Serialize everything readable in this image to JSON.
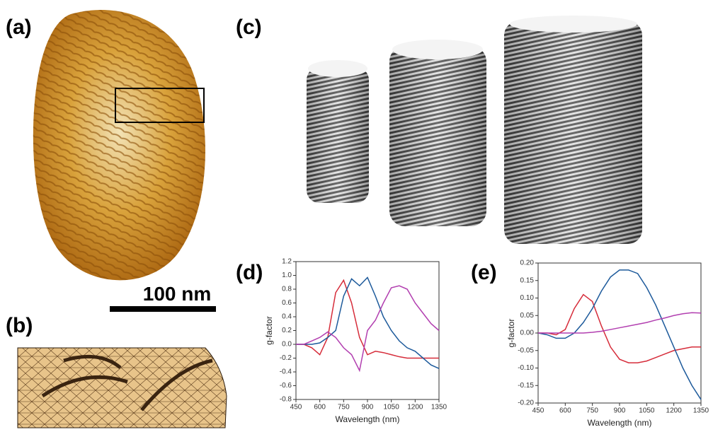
{
  "panels": {
    "a": "(a)",
    "b": "(b)",
    "c": "(c)",
    "d": "(d)",
    "e": "(e)"
  },
  "scale_bar": "100 nm",
  "chart_data": [
    {
      "type": "line",
      "x_label": "Wavelength (nm)",
      "y_label": "g-factor",
      "x": [
        450,
        500,
        550,
        600,
        650,
        700,
        750,
        800,
        850,
        900,
        950,
        1000,
        1050,
        1100,
        1150,
        1200,
        1250,
        1300,
        1350
      ],
      "xlim": [
        450,
        1350
      ],
      "xticks": [
        450,
        600,
        750,
        900,
        1050,
        1200,
        1350
      ],
      "ylim": [
        -0.8,
        1.2
      ],
      "yticks": [
        -0.8,
        -0.6,
        -0.4,
        -0.2,
        {
          "value": 0,
          "label": "0.0"
        },
        0.2,
        0.4,
        0.6,
        0.8,
        {
          "value": 1,
          "label": "1.0"
        },
        1.2
      ],
      "series": [
        {
          "color": "#d62c3a",
          "values": [
            0,
            0,
            -0.05,
            -0.15,
            0.1,
            0.75,
            0.93,
            0.6,
            0.1,
            -0.15,
            -0.1,
            -0.12,
            -0.15,
            -0.18,
            -0.2,
            -0.2,
            -0.2,
            -0.2,
            -0.2
          ]
        },
        {
          "color": "#1d5a9b",
          "values": [
            0,
            0,
            0,
            0.02,
            0.1,
            0.2,
            0.7,
            0.95,
            0.85,
            0.97,
            0.7,
            0.4,
            0.2,
            0.05,
            -0.05,
            -0.1,
            -0.2,
            -0.3,
            -0.35
          ]
        },
        {
          "color": "#b23fb0",
          "values": [
            0,
            0,
            0.05,
            0.1,
            0.18,
            0.1,
            -0.05,
            -0.15,
            -0.38,
            0.2,
            0.35,
            0.6,
            0.82,
            0.85,
            0.8,
            0.6,
            0.45,
            0.3,
            0.2
          ]
        }
      ]
    },
    {
      "type": "line",
      "x_label": "Wavelength (nm)",
      "y_label": "g-factor",
      "x": [
        450,
        500,
        550,
        600,
        650,
        700,
        750,
        800,
        850,
        900,
        950,
        1000,
        1050,
        1100,
        1150,
        1200,
        1250,
        1300,
        1350
      ],
      "xlim": [
        450,
        1350
      ],
      "xticks": [
        450,
        600,
        750,
        900,
        1050,
        1200,
        1350
      ],
      "ylim": [
        -0.2,
        0.2
      ],
      "yticks": [
        {
          "value": -0.2,
          "label": "-0.20"
        },
        {
          "value": -0.15,
          "label": "-0.15"
        },
        {
          "value": -0.1,
          "label": "-0.10"
        },
        {
          "value": -0.05,
          "label": "-0.05"
        },
        {
          "value": 0,
          "label": "0.00"
        },
        {
          "value": 0.05,
          "label": "0.05"
        },
        {
          "value": 0.1,
          "label": "0.10"
        },
        {
          "value": 0.15,
          "label": "0.15"
        },
        {
          "value": 0.2,
          "label": "0.20"
        }
      ],
      "series": [
        {
          "color": "#d62c3a",
          "values": [
            0,
            0,
            -0.005,
            0.01,
            0.07,
            0.11,
            0.09,
            0.02,
            -0.04,
            -0.075,
            -0.085,
            -0.085,
            -0.08,
            -0.07,
            -0.06,
            -0.05,
            -0.045,
            -0.04,
            -0.04
          ]
        },
        {
          "color": "#1d5a9b",
          "values": [
            0,
            -0.005,
            -0.015,
            -0.015,
            0,
            0.03,
            0.07,
            0.12,
            0.16,
            0.18,
            0.18,
            0.17,
            0.13,
            0.08,
            0.02,
            -0.04,
            -0.1,
            -0.15,
            -0.19
          ]
        },
        {
          "color": "#b23fb0",
          "values": [
            0,
            0,
            0,
            0,
            0,
            0,
            0.002,
            0.005,
            0.01,
            0.015,
            0.02,
            0.025,
            0.03,
            0.037,
            0.043,
            0.05,
            0.055,
            0.058,
            0.057
          ]
        }
      ]
    }
  ]
}
